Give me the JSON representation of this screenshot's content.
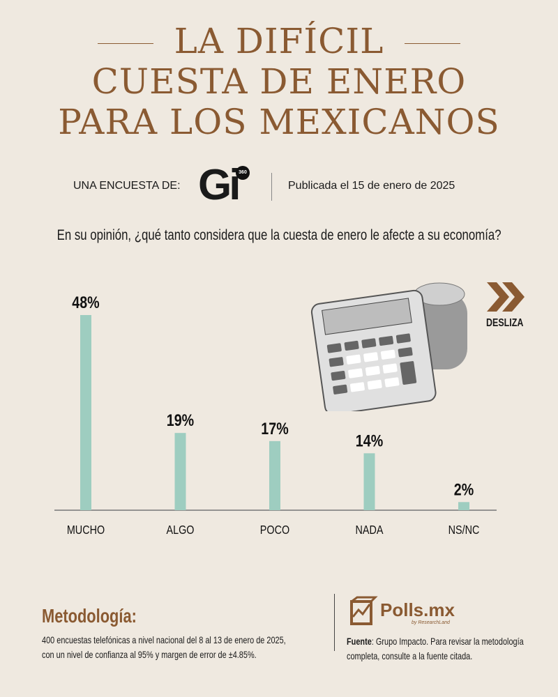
{
  "title": {
    "line1": "LA DIFÍCIL",
    "line2": "CUESTA DE ENERO",
    "line3": "PARA LOS MEXICANOS"
  },
  "survey": {
    "by_label": "UNA ENCUESTA DE:",
    "logo_text": "Gi",
    "logo_badge": "360",
    "published": "Publicada el 15 de enero de 2025"
  },
  "question": "En su opinión, ¿qué tanto considera que la cuesta de enero le afecte a su economía?",
  "swipe_label": "DESLIZA",
  "colors": {
    "brand": "#8a5a32",
    "bar": "#9ecdc0",
    "text": "#1a1a1a"
  },
  "chart_data": {
    "type": "bar",
    "title": "En su opinión, ¿qué tanto considera que la cuesta de enero le afecte a su economía?",
    "categories": [
      "MUCHO",
      "ALGO",
      "POCO",
      "NADA",
      "NS/NC"
    ],
    "values": [
      48,
      19,
      17,
      14,
      2
    ],
    "labels": [
      "48%",
      "19%",
      "17%",
      "14%",
      "2%"
    ],
    "xlabel": "",
    "ylabel": "",
    "ylim": [
      0,
      48
    ],
    "grid": false
  },
  "methodology": {
    "heading": "Metodología:",
    "text1": "400 encuestas telefónicas a nivel nacional del 8 al 13 de enero de 2025,",
    "text2": "con un nivel de confianza al 95% y margen de error de ±4.85%."
  },
  "source": {
    "logo_text": "Polls.mx",
    "logo_sub": "by ResearchLand",
    "label": "Fuente",
    "text1": ": Grupo Impacto. Para revisar la metodología",
    "text2": "completa, consulte a la fuente citada."
  }
}
